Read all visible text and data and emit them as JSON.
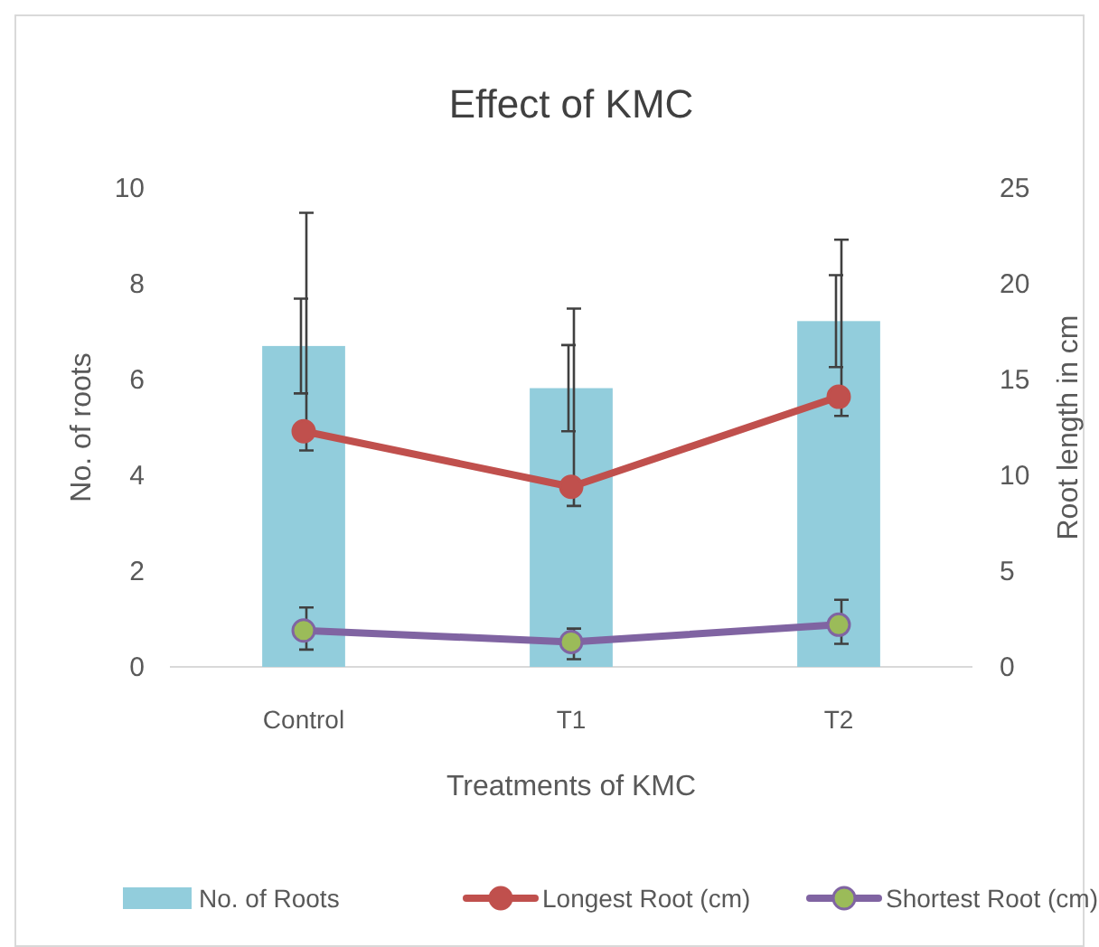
{
  "chart_data": {
    "type": "bar",
    "title": "Effect of KMC",
    "xlabel": "Treatments of KMC",
    "ylabel": "No. of roots",
    "y2label": "Root length in cm",
    "categories": [
      "Control",
      "T1",
      "T2"
    ],
    "series": [
      {
        "name": "No. of Roots",
        "color": "#92cddc",
        "values": [
          6.7,
          5.82,
          7.22
        ],
        "errors": [
          0.99,
          0.9,
          0.96
        ]
      },
      {
        "name": "Longest Root (cm)",
        "type": "line",
        "axis": "y2",
        "color": "#c0504d",
        "values": [
          12.3,
          9.4,
          14.1
        ],
        "errors": [
          [
            11.3,
            23.7
          ],
          [
            8.4,
            18.7
          ],
          [
            13.1,
            22.3
          ]
        ]
      },
      {
        "name": "Shortest Root (cm)",
        "type": "line",
        "axis": "y2",
        "color": "#8064a2",
        "colors": [
          "#9bbb59",
          "#9bbb59",
          "#9bbb59"
        ],
        "values": [
          1.9,
          1.3,
          2.2
        ],
        "errors": [
          [
            0.9,
            3.1
          ],
          [
            0.4,
            2.0
          ],
          [
            1.2,
            3.5
          ]
        ]
      }
    ],
    "ylim": [
      0,
      10
    ],
    "yticks": [
      0,
      2,
      4,
      6,
      8,
      10
    ],
    "y2lim": [
      0,
      25
    ],
    "y2ticks": [
      0,
      5,
      10,
      15,
      20,
      25
    ],
    "legend": "bottom",
    "marker": "circle",
    "line_style": "solid"
  }
}
